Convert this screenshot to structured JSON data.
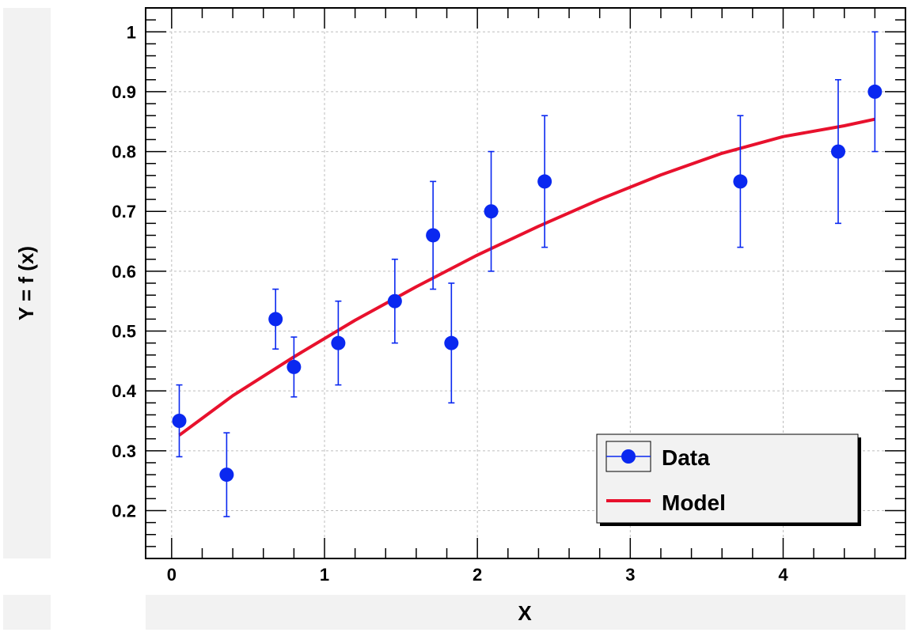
{
  "chart_data": {
    "type": "scatter",
    "title": "",
    "xlabel": "X",
    "ylabel": "Y = f (x)",
    "xlim": [
      -0.17,
      4.8
    ],
    "ylim": [
      0.12,
      1.04
    ],
    "xticks": [
      0,
      1,
      2,
      3,
      4
    ],
    "xtick_labels": [
      "0",
      "1",
      "2",
      "3",
      "4"
    ],
    "yticks": [
      0.2,
      0.3,
      0.4,
      0.5,
      0.6,
      0.7,
      0.8,
      0.9,
      1.0
    ],
    "ytick_labels": [
      "0.2",
      "0.3",
      "0.4",
      "0.5",
      "0.6",
      "0.7",
      "0.8",
      "0.9",
      "1"
    ],
    "grid": true,
    "legend_position": "bottom-right",
    "series": [
      {
        "name": "Data",
        "kind": "points_with_errors",
        "color": "#0a28f0",
        "points": [
          {
            "x": 0.05,
            "y": 0.35,
            "err": 0.06
          },
          {
            "x": 0.36,
            "y": 0.26,
            "err": 0.07
          },
          {
            "x": 0.68,
            "y": 0.52,
            "err": 0.05
          },
          {
            "x": 0.8,
            "y": 0.44,
            "err": 0.05
          },
          {
            "x": 1.09,
            "y": 0.48,
            "err": 0.07
          },
          {
            "x": 1.46,
            "y": 0.55,
            "err": 0.07
          },
          {
            "x": 1.71,
            "y": 0.66,
            "err": 0.09
          },
          {
            "x": 1.83,
            "y": 0.48,
            "err": 0.1
          },
          {
            "x": 2.09,
            "y": 0.7,
            "err": 0.1
          },
          {
            "x": 2.44,
            "y": 0.75,
            "err": 0.11
          },
          {
            "x": 3.72,
            "y": 0.75,
            "err": 0.11
          },
          {
            "x": 4.36,
            "y": 0.8,
            "err": 0.12
          },
          {
            "x": 4.6,
            "y": 0.9,
            "err": 0.1
          }
        ]
      },
      {
        "name": "Model",
        "kind": "curve",
        "color": "#e8112d",
        "x": [
          0.05,
          0.4,
          0.8,
          1.2,
          1.6,
          2.0,
          2.4,
          2.8,
          3.2,
          3.6,
          4.0,
          4.4,
          4.6
        ],
        "y": [
          0.326,
          0.392,
          0.457,
          0.518,
          0.574,
          0.627,
          0.675,
          0.72,
          0.761,
          0.797,
          0.825,
          0.843,
          0.854
        ]
      }
    ],
    "legend": [
      "Data",
      "Model"
    ]
  }
}
